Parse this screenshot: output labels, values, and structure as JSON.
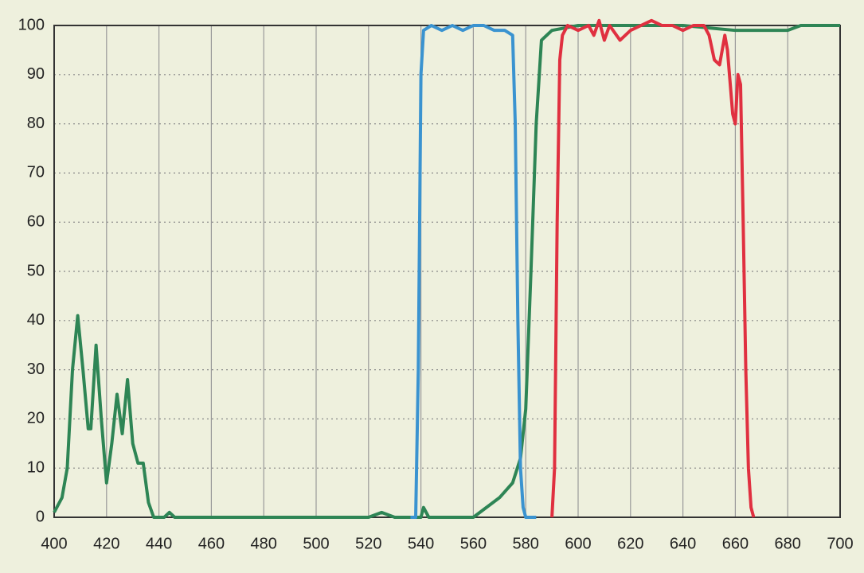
{
  "chart_data": {
    "type": "line",
    "xlim": [
      400,
      700
    ],
    "ylim": [
      0,
      100
    ],
    "xticks": [
      400,
      420,
      440,
      460,
      480,
      500,
      520,
      540,
      560,
      580,
      600,
      620,
      640,
      660,
      680,
      700
    ],
    "yticks": [
      0,
      10,
      20,
      30,
      40,
      50,
      60,
      70,
      80,
      90,
      100
    ],
    "grid": true,
    "series": [
      {
        "color": "#2e8555",
        "x": [
          400,
          403,
          405,
          407,
          409,
          411,
          413,
          414,
          416,
          418,
          420,
          422,
          424,
          426,
          428,
          430,
          432,
          434,
          436,
          438,
          442,
          444,
          446,
          520,
          525,
          530,
          540,
          541,
          543,
          560,
          565,
          570,
          575,
          578,
          580,
          582,
          584,
          586,
          588,
          590,
          600,
          620,
          640,
          660,
          670,
          680,
          685,
          700
        ],
        "values": [
          1,
          4,
          10,
          30,
          41,
          30,
          18,
          18,
          35,
          20,
          7,
          15,
          25,
          17,
          28,
          15,
          11,
          11,
          3,
          0,
          0,
          1,
          0,
          0,
          1,
          0,
          0,
          2,
          0,
          0,
          2,
          4,
          7,
          12,
          22,
          50,
          80,
          97,
          98,
          99,
          100,
          100,
          100,
          99,
          99,
          99,
          100,
          100
        ]
      },
      {
        "color": "#3a93d0",
        "x": [
          536,
          538,
          539,
          540,
          541,
          544,
          548,
          552,
          556,
          560,
          564,
          568,
          572,
          575,
          576,
          577,
          578,
          579,
          580,
          584
        ],
        "values": [
          0,
          0,
          30,
          90,
          99,
          100,
          99,
          100,
          99,
          100,
          100,
          99,
          99,
          98,
          80,
          40,
          10,
          2,
          0,
          0
        ]
      },
      {
        "color": "#e03040",
        "x": [
          590,
          591,
          592,
          593,
          594,
          596,
          600,
          604,
          606,
          608,
          610,
          612,
          616,
          620,
          624,
          628,
          632,
          636,
          640,
          644,
          648,
          650,
          652,
          654,
          656,
          657,
          659,
          660,
          661,
          662,
          663,
          664,
          665,
          666,
          667
        ],
        "values": [
          0,
          10,
          60,
          93,
          98,
          100,
          99,
          100,
          98,
          101,
          97,
          100,
          97,
          99,
          100,
          101,
          100,
          100,
          99,
          100,
          100,
          98,
          93,
          92,
          98,
          95,
          82,
          80,
          90,
          88,
          60,
          30,
          10,
          2,
          0
        ]
      }
    ]
  }
}
